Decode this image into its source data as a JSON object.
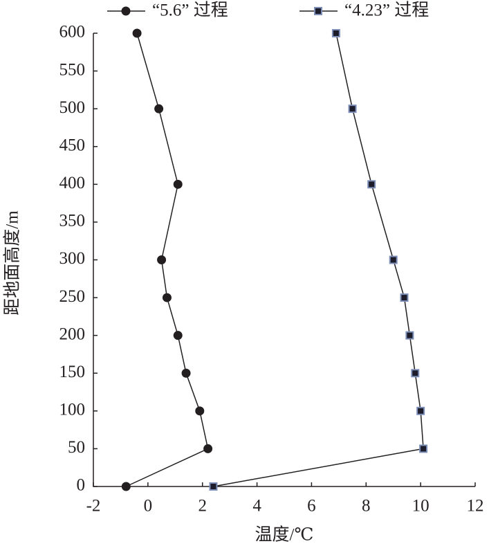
{
  "chart_data": {
    "type": "line",
    "x_label": "温度/℃",
    "y_label": "距地面高度/m",
    "y": [
      0,
      50,
      100,
      150,
      200,
      250,
      300,
      400,
      500,
      600
    ],
    "series": [
      {
        "name": "“5.6” 过程",
        "color": "#231f20",
        "marker": "circle",
        "marker_edge": "#231f20",
        "values": [
          -0.8,
          2.2,
          1.9,
          1.4,
          1.1,
          0.7,
          0.5,
          1.1,
          0.4,
          -0.4
        ]
      },
      {
        "name": "“4.23” 过程",
        "color": "#231f20",
        "marker": "square",
        "marker_edge": "#7d8fb8",
        "values": [
          2.4,
          10.1,
          10.0,
          9.8,
          9.6,
          9.4,
          9.0,
          8.2,
          7.5,
          6.9
        ]
      }
    ],
    "xlim": [
      -2,
      12
    ],
    "xticks": [
      -2,
      0,
      2,
      4,
      6,
      8,
      10,
      12
    ],
    "ylim": [
      0,
      600
    ],
    "yticks": [
      0,
      50,
      100,
      150,
      200,
      250,
      300,
      350,
      400,
      450,
      500,
      550,
      600
    ],
    "legend": "top"
  }
}
